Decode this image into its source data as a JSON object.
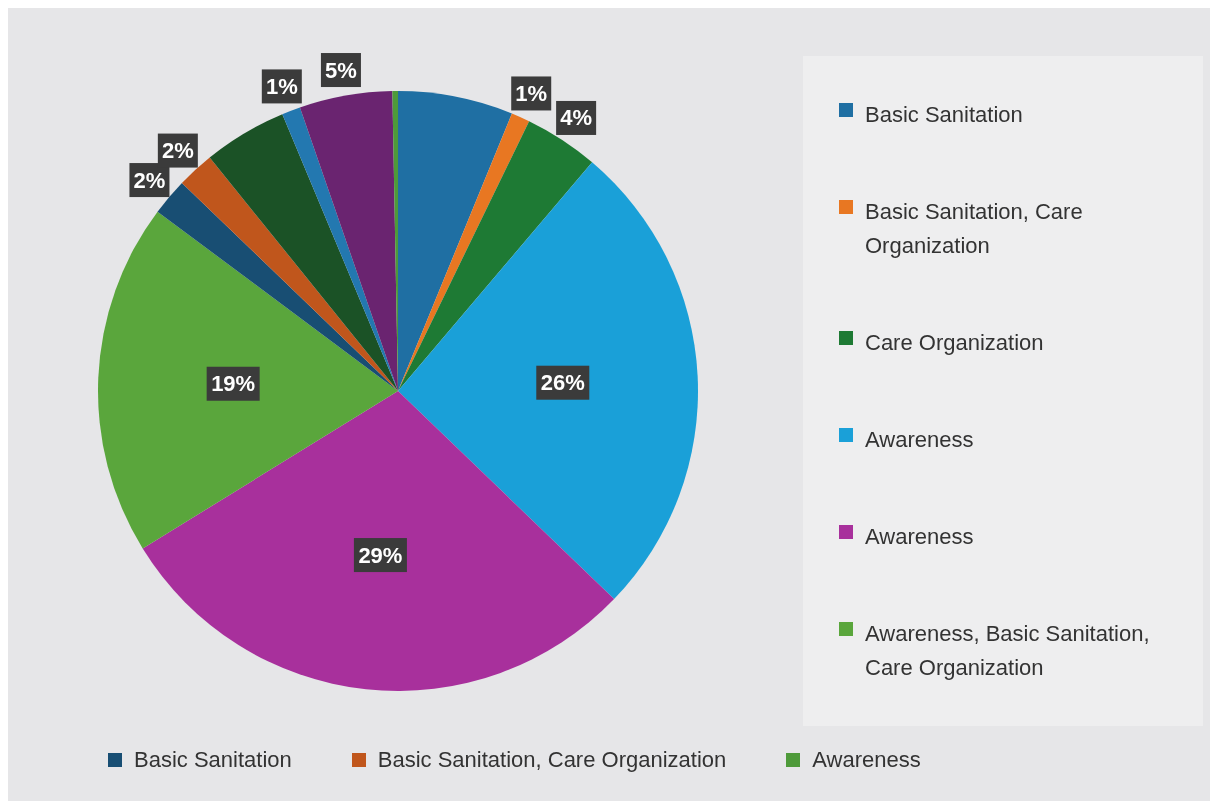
{
  "chart_data": {
    "type": "pie",
    "categories": [
      "Basic Sanitation",
      "Basic Sanitation, Care Organization",
      "Care Organization",
      "Awareness",
      "Awareness",
      "Awareness, Basic Sanitation, Care Organization",
      "Basic Sanitation",
      "Basic Sanitation, Care Organization",
      null,
      null,
      null,
      "Awareness"
    ],
    "values": [
      6.2,
      1,
      4,
      26,
      29,
      19,
      2,
      2,
      4.5,
      1,
      5,
      0.3
    ],
    "value_labels": [
      null,
      "1%",
      "4%",
      "26%",
      "29%",
      "19%",
      "2%",
      "2%",
      null,
      "1%",
      "5%",
      null
    ],
    "colors": [
      "#1f6fa3",
      "#e87722",
      "#1e7a34",
      "#1aa0d8",
      "#a8309c",
      "#5aa63c",
      "#184e73",
      "#c0561c",
      "#1b5226",
      "#2378b0",
      "#6a2470",
      "#4e9a3a"
    ],
    "legend": "right"
  }
}
